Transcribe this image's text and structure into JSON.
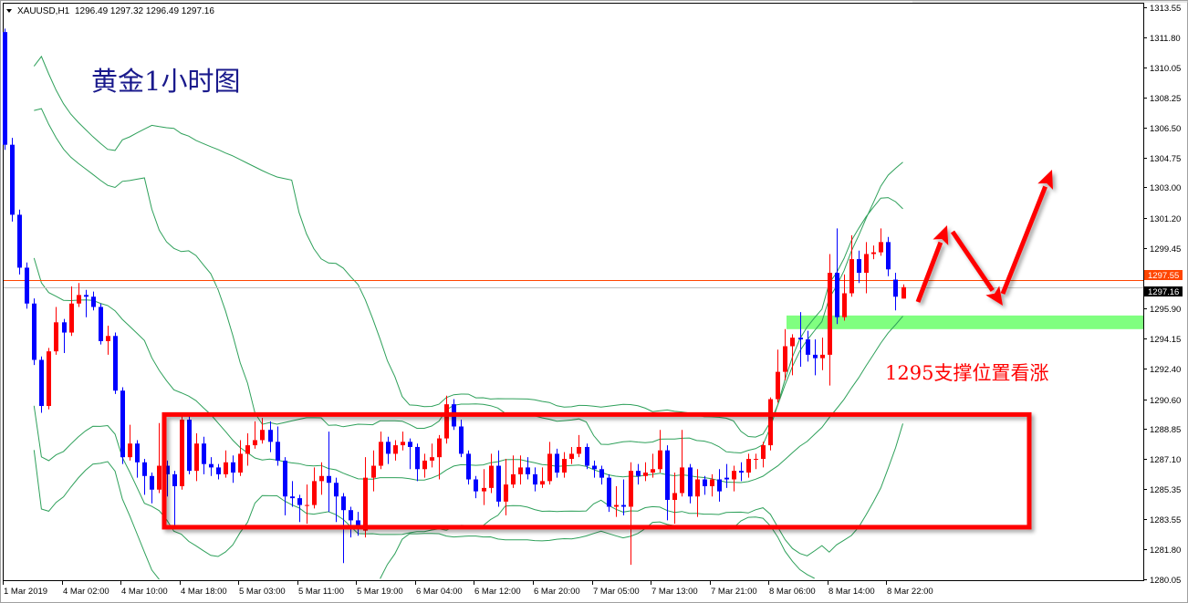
{
  "header": {
    "symbol": "XAUUSD,H1",
    "ohlc": "1296.49 1297.32 1296.49 1297.16",
    "menu_icon": "triangle-down-icon"
  },
  "colors": {
    "bull": "#ff0000",
    "bear": "#0000ff",
    "bands": "#2ea05a",
    "ask_line": "#ff4500",
    "bid_line": "#c0c0c0",
    "annotation_red": "#ff0000",
    "support_zone": "#80ff80",
    "title": "#1a1a8c"
  },
  "annotations": {
    "title": "黄金1小时图",
    "support_text": "1295支撑位置看涨",
    "support_zone_prices": [
      1295.5,
      1294.7
    ],
    "range_box_prices": [
      1289.7,
      1283.1
    ]
  },
  "chart_data": {
    "type": "candlestick",
    "symbol": "XAUUSD",
    "timeframe": "H1",
    "indicators": [
      "Bollinger Bands"
    ],
    "ylim": [
      1280.05,
      1313.55
    ],
    "grid": false,
    "price_ticks": [
      "1313.55",
      "1311.80",
      "1310.05",
      "1308.25",
      "1306.50",
      "1304.75",
      "1303.00",
      "1301.20",
      "1299.45",
      "1297.55",
      "1297.16",
      "1295.90",
      "1294.15",
      "1292.40",
      "1290.60",
      "1288.85",
      "1287.10",
      "1285.35",
      "1283.55",
      "1281.80",
      "1280.05"
    ],
    "ask": "1297.55",
    "bid": "1297.16",
    "time_labels": [
      "1 Mar 2019",
      "4 Mar 02:00",
      "4 Mar 10:00",
      "4 Mar 18:00",
      "5 Mar 03:00",
      "5 Mar 11:00",
      "5 Mar 19:00",
      "6 Mar 04:00",
      "6 Mar 12:00",
      "6 Mar 20:00",
      "7 Mar 05:00",
      "7 Mar 13:00",
      "7 Mar 21:00",
      "8 Mar 06:00",
      "8 Mar 14:00",
      "8 Mar 22:00"
    ],
    "ohlc_columns": [
      "open",
      "high",
      "low",
      "close"
    ],
    "candles": [
      [
        1312.1,
        1312.3,
        1305.2,
        1305.5
      ],
      [
        1305.5,
        1305.9,
        1301.0,
        1301.4
      ],
      [
        1301.4,
        1301.7,
        1297.9,
        1298.3
      ],
      [
        1298.3,
        1298.6,
        1295.9,
        1296.2
      ],
      [
        1296.2,
        1296.5,
        1292.6,
        1292.9
      ],
      [
        1292.9,
        1293.1,
        1289.8,
        1290.2
      ],
      [
        1290.2,
        1293.6,
        1290.0,
        1293.4
      ],
      [
        1293.4,
        1296.0,
        1293.2,
        1295.1
      ],
      [
        1295.1,
        1295.3,
        1293.3,
        1294.5
      ],
      [
        1294.5,
        1297.2,
        1294.3,
        1296.2
      ],
      [
        1296.2,
        1297.4,
        1296.0,
        1296.7
      ],
      [
        1296.7,
        1297.0,
        1295.4,
        1296.6
      ],
      [
        1296.6,
        1296.9,
        1295.8,
        1296.0
      ],
      [
        1296.0,
        1296.2,
        1293.8,
        1294.0
      ],
      [
        1294.0,
        1294.9,
        1293.2,
        1294.3
      ],
      [
        1294.3,
        1294.5,
        1290.9,
        1291.1
      ],
      [
        1291.1,
        1291.3,
        1286.8,
        1287.2
      ],
      [
        1287.2,
        1289.1,
        1287.0,
        1288.0
      ],
      [
        1288.0,
        1288.2,
        1286.0,
        1286.9
      ],
      [
        1286.9,
        1287.1,
        1285.0,
        1286.1
      ],
      [
        1286.1,
        1286.3,
        1284.5,
        1285.3
      ],
      [
        1285.3,
        1289.2,
        1285.1,
        1286.7
      ],
      [
        1286.7,
        1287.0,
        1284.9,
        1286.2
      ],
      [
        1286.2,
        1286.4,
        1283.1,
        1285.5
      ],
      [
        1285.5,
        1289.6,
        1285.3,
        1289.4
      ],
      [
        1289.4,
        1289.6,
        1286.2,
        1286.4
      ],
      [
        1286.4,
        1288.6,
        1285.8,
        1288.0
      ],
      [
        1288.0,
        1288.4,
        1286.2,
        1286.8
      ],
      [
        1286.8,
        1287.2,
        1286.1,
        1286.6
      ],
      [
        1286.6,
        1286.8,
        1285.9,
        1286.2
      ],
      [
        1286.2,
        1287.6,
        1286.0,
        1286.9
      ],
      [
        1286.9,
        1287.3,
        1285.7,
        1286.3
      ],
      [
        1286.3,
        1288.2,
        1286.1,
        1287.4
      ],
      [
        1287.4,
        1288.6,
        1286.7,
        1287.9
      ],
      [
        1287.9,
        1289.3,
        1287.7,
        1288.2
      ],
      [
        1288.2,
        1289.5,
        1288.0,
        1288.8
      ],
      [
        1288.8,
        1289.3,
        1287.5,
        1288.1
      ],
      [
        1288.1,
        1289.0,
        1286.7,
        1287.0
      ],
      [
        1287.0,
        1287.2,
        1283.8,
        1284.9
      ],
      [
        1284.9,
        1285.8,
        1284.3,
        1284.8
      ],
      [
        1284.8,
        1285.0,
        1283.4,
        1284.4
      ],
      [
        1284.4,
        1285.6,
        1283.3,
        1284.4
      ],
      [
        1284.4,
        1286.6,
        1284.2,
        1285.8
      ],
      [
        1285.8,
        1286.9,
        1285.0,
        1286.1
      ],
      [
        1286.1,
        1288.7,
        1284.0,
        1285.7
      ],
      [
        1285.7,
        1286.0,
        1283.4,
        1284.9
      ],
      [
        1284.9,
        1285.1,
        1281.0,
        1284.1
      ],
      [
        1284.1,
        1284.3,
        1282.5,
        1283.5
      ],
      [
        1283.5,
        1284.0,
        1282.6,
        1283.2
      ],
      [
        1282.9,
        1287.2,
        1282.5,
        1286.0
      ],
      [
        1286.0,
        1287.6,
        1285.2,
        1286.7
      ],
      [
        1286.7,
        1288.7,
        1286.5,
        1288.1
      ],
      [
        1288.1,
        1288.4,
        1286.8,
        1287.4
      ],
      [
        1287.4,
        1288.2,
        1287.0,
        1287.9
      ],
      [
        1287.9,
        1288.7,
        1287.6,
        1288.1
      ],
      [
        1288.1,
        1288.3,
        1286.5,
        1287.8
      ],
      [
        1287.8,
        1288.0,
        1285.8,
        1286.5
      ],
      [
        1286.5,
        1287.4,
        1286.0,
        1287.0
      ],
      [
        1287.0,
        1288.0,
        1286.6,
        1287.2
      ],
      [
        1287.2,
        1288.5,
        1285.9,
        1288.3
      ],
      [
        1288.3,
        1290.8,
        1288.0,
        1290.3
      ],
      [
        1290.3,
        1290.6,
        1288.8,
        1289.0
      ],
      [
        1289.0,
        1289.4,
        1287.2,
        1287.4
      ],
      [
        1287.4,
        1287.6,
        1285.6,
        1285.9
      ],
      [
        1285.9,
        1286.1,
        1284.8,
        1285.2
      ],
      [
        1285.2,
        1286.5,
        1284.4,
        1285.4
      ],
      [
        1285.4,
        1287.4,
        1285.1,
        1286.7
      ],
      [
        1286.7,
        1287.6,
        1284.3,
        1284.6
      ],
      [
        1284.6,
        1287.1,
        1283.8,
        1285.6
      ],
      [
        1285.6,
        1287.3,
        1285.4,
        1286.2
      ],
      [
        1286.2,
        1287.3,
        1285.6,
        1286.6
      ],
      [
        1286.6,
        1287.2,
        1285.9,
        1286.2
      ],
      [
        1286.2,
        1286.6,
        1285.2,
        1285.6
      ],
      [
        1285.6,
        1286.6,
        1285.4,
        1285.8
      ],
      [
        1285.8,
        1288.1,
        1285.6,
        1287.4
      ],
      [
        1287.4,
        1287.7,
        1286.0,
        1286.3
      ],
      [
        1286.3,
        1287.5,
        1286.0,
        1287.1
      ],
      [
        1287.1,
        1287.8,
        1286.8,
        1287.4
      ],
      [
        1287.4,
        1288.5,
        1287.2,
        1287.8
      ],
      [
        1287.8,
        1288.0,
        1286.5,
        1286.7
      ],
      [
        1286.7,
        1287.0,
        1286.0,
        1286.5
      ],
      [
        1286.5,
        1286.7,
        1285.6,
        1286.0
      ],
      [
        1286.0,
        1286.2,
        1284.0,
        1284.3
      ],
      [
        1284.3,
        1285.5,
        1283.7,
        1284.4
      ],
      [
        1284.4,
        1285.9,
        1283.8,
        1284.3
      ],
      [
        1284.3,
        1286.9,
        1280.9,
        1286.4
      ],
      [
        1286.4,
        1286.8,
        1285.6,
        1286.1
      ],
      [
        1286.1,
        1286.9,
        1285.8,
        1286.3
      ],
      [
        1286.3,
        1287.4,
        1286.0,
        1286.5
      ],
      [
        1286.5,
        1288.8,
        1286.3,
        1287.6
      ],
      [
        1287.6,
        1287.9,
        1283.5,
        1284.7
      ],
      [
        1284.7,
        1286.3,
        1283.3,
        1285.1
      ],
      [
        1285.1,
        1288.8,
        1284.9,
        1286.6
      ],
      [
        1286.6,
        1286.8,
        1284.5,
        1284.9
      ],
      [
        1284.9,
        1286.5,
        1283.7,
        1285.9
      ],
      [
        1285.9,
        1286.1,
        1285.0,
        1285.5
      ],
      [
        1285.5,
        1286.2,
        1284.9,
        1285.9
      ],
      [
        1285.9,
        1286.5,
        1284.6,
        1285.2
      ],
      [
        1286.0,
        1286.8,
        1285.4,
        1285.9
      ],
      [
        1285.9,
        1286.7,
        1285.2,
        1286.4
      ],
      [
        1286.4,
        1286.9,
        1285.8,
        1286.3
      ],
      [
        1286.3,
        1287.4,
        1286.0,
        1287.1
      ],
      [
        1287.1,
        1287.4,
        1286.5,
        1287.1
      ],
      [
        1287.1,
        1288.1,
        1286.6,
        1287.9
      ],
      [
        1287.9,
        1290.7,
        1287.6,
        1290.6
      ],
      [
        1290.6,
        1293.5,
        1290.4,
        1292.2
      ],
      [
        1292.2,
        1294.7,
        1291.7,
        1293.7
      ],
      [
        1293.7,
        1294.4,
        1292.0,
        1294.2
      ],
      [
        1294.2,
        1295.7,
        1292.5,
        1294.1
      ],
      [
        1294.1,
        1294.6,
        1292.8,
        1293.2
      ],
      [
        1293.2,
        1294.1,
        1292.0,
        1293.0
      ],
      [
        1293.0,
        1294.2,
        1292.3,
        1293.2
      ],
      [
        1293.2,
        1299.1,
        1291.4,
        1298.0
      ],
      [
        1298.0,
        1300.6,
        1295.0,
        1295.4
      ],
      [
        1295.4,
        1297.9,
        1295.2,
        1296.8
      ],
      [
        1296.8,
        1300.2,
        1296.6,
        1298.8
      ],
      [
        1298.8,
        1299.3,
        1297.4,
        1298.0
      ],
      [
        1298.0,
        1299.8,
        1296.8,
        1299.1
      ],
      [
        1299.1,
        1299.6,
        1298.8,
        1299.2
      ],
      [
        1299.2,
        1300.6,
        1299.0,
        1299.8
      ],
      [
        1299.8,
        1300.1,
        1297.8,
        1298.2
      ],
      [
        1297.6,
        1298.0,
        1295.8,
        1296.6
      ],
      [
        1296.49,
        1297.32,
        1296.49,
        1297.16
      ]
    ]
  }
}
